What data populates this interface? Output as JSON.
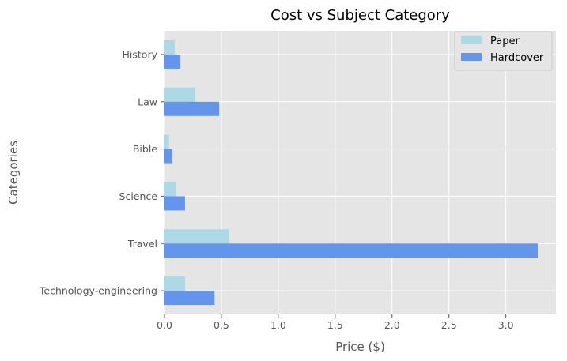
{
  "chart_data": {
    "type": "bar",
    "orientation": "horizontal",
    "title": "Cost vs Subject Category",
    "xlabel": "Price ($)",
    "ylabel": "Categories",
    "categories": [
      "Technology-engineering",
      "Travel",
      "Science",
      "Bible",
      "Law",
      "History"
    ],
    "series": [
      {
        "name": "Paper",
        "color": "#add8e6",
        "values": [
          0.18,
          0.57,
          0.1,
          0.04,
          0.27,
          0.09
        ]
      },
      {
        "name": "Hardcover",
        "color": "#6495ed",
        "values": [
          0.44,
          3.28,
          0.18,
          0.07,
          0.48,
          0.14
        ]
      }
    ],
    "xlim": [
      0,
      3.44
    ],
    "xticks": [
      0.0,
      0.5,
      1.0,
      1.5,
      2.0,
      2.5,
      3.0
    ],
    "xtick_labels": [
      "0.0",
      "0.5",
      "1.0",
      "1.5",
      "2.0",
      "2.5",
      "3.0"
    ],
    "grid": true,
    "background": "#e5e5e5",
    "legend_position": "top-right"
  }
}
